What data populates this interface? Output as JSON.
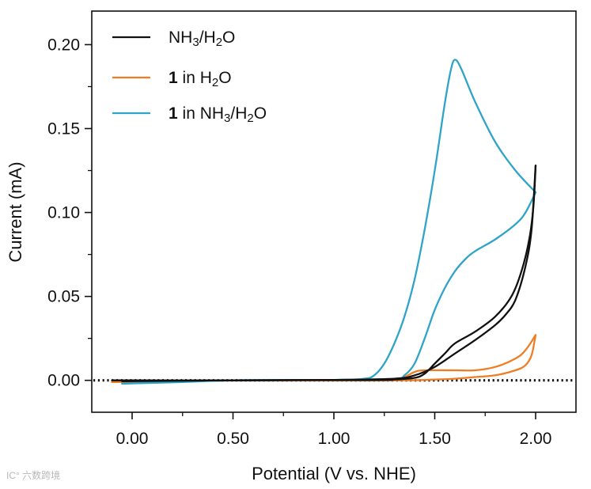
{
  "chart_data": {
    "type": "line",
    "title": "",
    "xlabel": "Potential (V vs. NHE)",
    "ylabel": "Current (mA)",
    "xlim": [
      -0.2,
      2.2
    ],
    "ylim": [
      -0.019,
      0.22
    ],
    "xticks": [
      0.0,
      0.5,
      1.0,
      1.5,
      2.0
    ],
    "xtick_labels": [
      "0.00",
      "0.50",
      "1.00",
      "1.50",
      "2.00"
    ],
    "yticks": [
      0.0,
      0.05,
      0.1,
      0.15,
      0.2
    ],
    "ytick_labels": [
      "0.00",
      "0.05",
      "0.10",
      "0.15",
      "0.20"
    ],
    "baseline": {
      "y": 0,
      "style": "dotted"
    },
    "legend_position": "top-left",
    "series": [
      {
        "name": "NH3/H2O",
        "color": "#111111",
        "forward": [
          [
            -0.1,
            0
          ],
          [
            0.5,
            0
          ],
          [
            1.0,
            0.0003
          ],
          [
            1.3,
            0.001
          ],
          [
            1.4,
            0.003
          ],
          [
            1.5,
            0.008
          ],
          [
            1.6,
            0.016
          ],
          [
            1.7,
            0.024
          ],
          [
            1.8,
            0.033
          ],
          [
            1.85,
            0.039
          ],
          [
            1.9,
            0.048
          ],
          [
            1.95,
            0.068
          ],
          [
            1.98,
            0.09
          ],
          [
            2.0,
            0.128
          ]
        ],
        "reverse": [
          [
            2.0,
            0.128
          ],
          [
            1.99,
            0.105
          ],
          [
            1.97,
            0.085
          ],
          [
            1.93,
            0.065
          ],
          [
            1.88,
            0.05
          ],
          [
            1.8,
            0.038
          ],
          [
            1.7,
            0.029
          ],
          [
            1.6,
            0.022
          ],
          [
            1.55,
            0.016
          ],
          [
            1.5,
            0.01
          ],
          [
            1.45,
            0.004
          ],
          [
            1.4,
            0.0015
          ],
          [
            1.3,
            0.0005
          ],
          [
            1.2,
            0.0002
          ],
          [
            0.5,
            0
          ],
          [
            -0.05,
            -0.0005
          ]
        ]
      },
      {
        "name": "1 in H2O",
        "color": "#f07d23",
        "forward": [
          [
            -0.1,
            -0.001
          ],
          [
            0.5,
            0
          ],
          [
            1.2,
            0
          ],
          [
            1.3,
            0.0008
          ],
          [
            1.35,
            0.002
          ],
          [
            1.4,
            0.005
          ],
          [
            1.45,
            0.006
          ],
          [
            1.6,
            0.006
          ],
          [
            1.7,
            0.006
          ],
          [
            1.8,
            0.008
          ],
          [
            1.9,
            0.013
          ],
          [
            1.95,
            0.018
          ],
          [
            2.0,
            0.027
          ]
        ],
        "reverse": [
          [
            2.0,
            0.027
          ],
          [
            1.98,
            0.015
          ],
          [
            1.95,
            0.009
          ],
          [
            1.9,
            0.006
          ],
          [
            1.8,
            0.003
          ],
          [
            1.7,
            0.002
          ],
          [
            1.6,
            0.001
          ],
          [
            1.5,
            0.0005
          ],
          [
            1.3,
            0
          ],
          [
            0.5,
            0
          ],
          [
            -0.1,
            -0.001
          ]
        ]
      },
      {
        "name": "1 in NH3/H2O",
        "color": "#2fa4c8",
        "forward": [
          [
            -0.05,
            -0.002
          ],
          [
            0.25,
            -0.001
          ],
          [
            0.5,
            0
          ],
          [
            1.0,
            0.0003
          ],
          [
            1.15,
            0.001
          ],
          [
            1.2,
            0.003
          ],
          [
            1.25,
            0.01
          ],
          [
            1.3,
            0.022
          ],
          [
            1.35,
            0.038
          ],
          [
            1.4,
            0.06
          ],
          [
            1.45,
            0.09
          ],
          [
            1.5,
            0.125
          ],
          [
            1.55,
            0.165
          ],
          [
            1.58,
            0.185
          ],
          [
            1.6,
            0.191
          ],
          [
            1.63,
            0.186
          ],
          [
            1.7,
            0.166
          ],
          [
            1.8,
            0.142
          ],
          [
            1.9,
            0.125
          ],
          [
            2.0,
            0.112
          ]
        ],
        "reverse": [
          [
            2.0,
            0.112
          ],
          [
            1.95,
            0.1
          ],
          [
            1.9,
            0.093
          ],
          [
            1.8,
            0.084
          ],
          [
            1.7,
            0.077
          ],
          [
            1.65,
            0.072
          ],
          [
            1.6,
            0.065
          ],
          [
            1.55,
            0.055
          ],
          [
            1.5,
            0.042
          ],
          [
            1.45,
            0.025
          ],
          [
            1.4,
            0.01
          ],
          [
            1.35,
            0.003
          ],
          [
            1.3,
            0.001
          ],
          [
            1.0,
            0.0003
          ],
          [
            0.5,
            0
          ],
          [
            0.2,
            -0.001
          ],
          [
            -0.05,
            -0.002
          ]
        ]
      }
    ]
  },
  "legend_items": [
    {
      "bold": "",
      "text": "NH",
      "sub1": "3",
      "text2": "/H",
      "sub2": "2",
      "text3": "O"
    },
    {
      "bold": "1",
      "text": " in H",
      "sub1": "2",
      "text2": "O",
      "sub2": "",
      "text3": ""
    },
    {
      "bold": "1",
      "text": " in NH",
      "sub1": "3",
      "text2": "/H",
      "sub2": "2",
      "text3": "O"
    }
  ],
  "watermark": "IC° 六数跨境"
}
